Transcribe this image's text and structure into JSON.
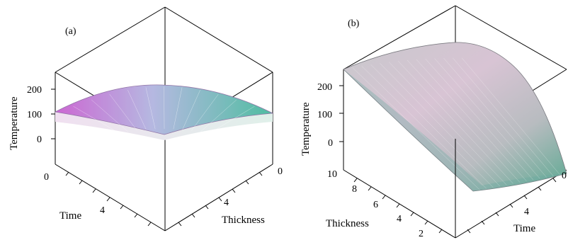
{
  "chart_data": [
    {
      "type": "surface3d",
      "panel_label": "(a)",
      "z_axis": {
        "label": "Temperature",
        "ticks": [
          "200",
          "100",
          "0"
        ]
      },
      "x_axis": {
        "label": "Time",
        "ticks": [
          "0",
          "4"
        ]
      },
      "y_axis": {
        "label": "Thickness",
        "ticks": [
          "0",
          "4"
        ]
      },
      "surface": {
        "peak_temperature": 200,
        "edge_temperature": 80,
        "shape": "dome"
      },
      "colors": {
        "magenta": "#c85ad0",
        "teal": "#40b89a",
        "light": "#e8e8ee"
      }
    },
    {
      "type": "surface3d",
      "panel_label": "(b)",
      "z_axis": {
        "label": "Temperature",
        "ticks": [
          "200",
          "100",
          "0"
        ]
      },
      "x_axis": {
        "label": "Thickness",
        "ticks": [
          "10",
          "8",
          "6",
          "4",
          "2"
        ]
      },
      "y_axis": {
        "label": "Time",
        "ticks": [
          "4",
          "0"
        ]
      },
      "surface": {
        "max_temperature": 250,
        "min_temperature": -80,
        "shape": "sloped"
      },
      "colors": {
        "magenta": "#c878c8",
        "gray": "#b8bcc0",
        "teal": "#5aa890"
      }
    }
  ]
}
